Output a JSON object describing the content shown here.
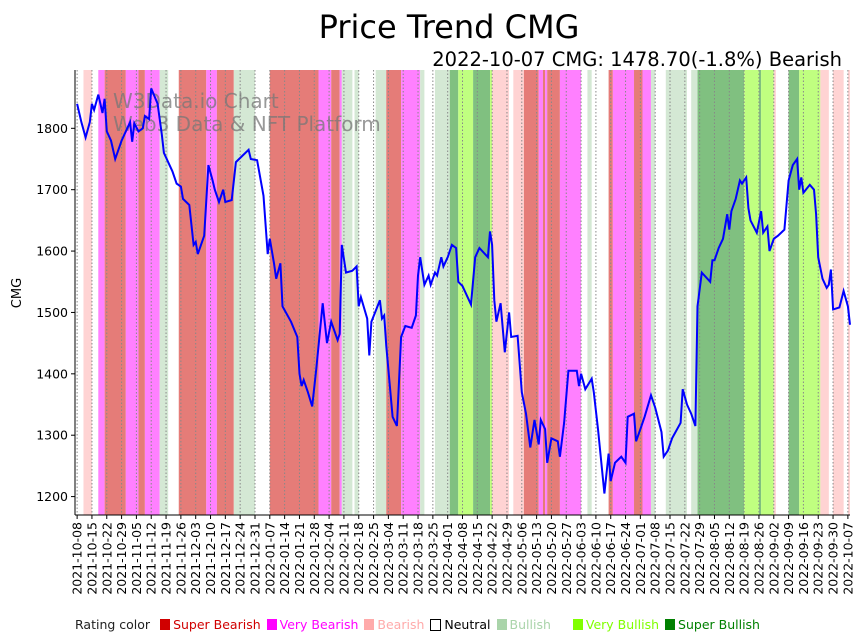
{
  "chart_data": {
    "type": "line",
    "title": "Price Trend CMG",
    "subtitle": "2022-10-07 CMG: 1478.70(-1.8%) Bearish",
    "watermark": [
      "W3Data.io Chart",
      "Web3 Data & NFT Platform"
    ],
    "ylabel": "CMG",
    "xlabel": "",
    "ylim": [
      1170,
      1895
    ],
    "yticks": [
      1200,
      1300,
      1400,
      1500,
      1600,
      1700,
      1800
    ],
    "x_unit": "days since 2021-10-08",
    "xlim": [
      -1,
      365
    ],
    "xtick_step_days": 7,
    "xtick_labels": [
      "2021-10-08",
      "2021-10-15",
      "2021-10-22",
      "2021-10-29",
      "2021-11-05",
      "2021-11-12",
      "2021-11-19",
      "2021-11-26",
      "2021-12-03",
      "2021-12-10",
      "2021-12-17",
      "2021-12-24",
      "2021-12-31",
      "2022-01-07",
      "2022-01-14",
      "2022-01-21",
      "2022-01-28",
      "2022-02-04",
      "2022-02-11",
      "2022-02-18",
      "2022-02-25",
      "2022-03-04",
      "2022-03-11",
      "2022-03-18",
      "2022-03-25",
      "2022-04-01",
      "2022-04-08",
      "2022-04-15",
      "2022-04-22",
      "2022-04-29",
      "2022-05-06",
      "2022-05-13",
      "2022-05-20",
      "2022-05-27",
      "2022-06-03",
      "2022-06-10",
      "2022-06-17",
      "2022-06-24",
      "2022-07-01",
      "2022-07-08",
      "2022-07-15",
      "2022-07-22",
      "2022-07-29",
      "2022-08-05",
      "2022-08-12",
      "2022-08-19",
      "2022-08-26",
      "2022-09-02",
      "2022-09-09",
      "2022-09-16",
      "2022-09-23",
      "2022-09-30",
      "2022-10-07"
    ],
    "grid": "vertical dotted at x ticks",
    "series": [
      {
        "name": "CMG price",
        "color": "#0000ff",
        "points": [
          [
            0,
            1840
          ],
          [
            2,
            1810
          ],
          [
            4,
            1785
          ],
          [
            6,
            1810
          ],
          [
            7,
            1840
          ],
          [
            8,
            1830
          ],
          [
            10,
            1855
          ],
          [
            12,
            1825
          ],
          [
            13,
            1848
          ],
          [
            14,
            1795
          ],
          [
            16,
            1780
          ],
          [
            18,
            1750
          ],
          [
            20,
            1770
          ],
          [
            21,
            1780
          ],
          [
            23,
            1795
          ],
          [
            25,
            1810
          ],
          [
            26,
            1778
          ],
          [
            27,
            1808
          ],
          [
            29,
            1795
          ],
          [
            31,
            1800
          ],
          [
            32,
            1820
          ],
          [
            34,
            1815
          ],
          [
            35,
            1865
          ],
          [
            38,
            1840
          ],
          [
            40,
            1790
          ],
          [
            41,
            1760
          ],
          [
            45,
            1730
          ],
          [
            47,
            1710
          ],
          [
            49,
            1705
          ],
          [
            50,
            1685
          ],
          [
            53,
            1675
          ],
          [
            55,
            1610
          ],
          [
            56,
            1615
          ],
          [
            57,
            1595
          ],
          [
            60,
            1625
          ],
          [
            62,
            1740
          ],
          [
            64,
            1715
          ],
          [
            65,
            1700
          ],
          [
            67,
            1680
          ],
          [
            69,
            1700
          ],
          [
            70,
            1680
          ],
          [
            73,
            1683
          ],
          [
            75,
            1745
          ],
          [
            78,
            1755
          ],
          [
            81,
            1765
          ],
          [
            82,
            1750
          ],
          [
            85,
            1748
          ],
          [
            88,
            1690
          ],
          [
            90,
            1595
          ],
          [
            91,
            1620
          ],
          [
            93,
            1580
          ],
          [
            94,
            1555
          ],
          [
            96,
            1580
          ],
          [
            97,
            1510
          ],
          [
            101,
            1485
          ],
          [
            104,
            1460
          ],
          [
            105,
            1400
          ],
          [
            106,
            1380
          ],
          [
            107,
            1390
          ],
          [
            109,
            1370
          ],
          [
            111,
            1347
          ],
          [
            113,
            1410
          ],
          [
            116,
            1515
          ],
          [
            118,
            1450
          ],
          [
            120,
            1485
          ],
          [
            123,
            1455
          ],
          [
            124,
            1465
          ],
          [
            125,
            1610
          ],
          [
            127,
            1565
          ],
          [
            130,
            1568
          ],
          [
            132,
            1575
          ],
          [
            133,
            1510
          ],
          [
            134,
            1525
          ],
          [
            137,
            1490
          ],
          [
            138,
            1430
          ],
          [
            139,
            1485
          ],
          [
            143,
            1520
          ],
          [
            144,
            1490
          ],
          [
            145,
            1495
          ],
          [
            146,
            1445
          ],
          [
            149,
            1330
          ],
          [
            151,
            1315
          ],
          [
            153,
            1460
          ],
          [
            155,
            1478
          ],
          [
            158,
            1475
          ],
          [
            160,
            1495
          ],
          [
            161,
            1560
          ],
          [
            162,
            1590
          ],
          [
            164,
            1545
          ],
          [
            166,
            1560
          ],
          [
            167,
            1545
          ],
          [
            169,
            1565
          ],
          [
            170,
            1560
          ],
          [
            172,
            1590
          ],
          [
            173,
            1575
          ],
          [
            175,
            1590
          ],
          [
            177,
            1610
          ],
          [
            179,
            1605
          ],
          [
            180,
            1550
          ],
          [
            182,
            1543
          ],
          [
            186,
            1513
          ],
          [
            188,
            1590
          ],
          [
            190,
            1605
          ],
          [
            194,
            1590
          ],
          [
            195,
            1632
          ],
          [
            196,
            1610
          ],
          [
            197,
            1520
          ],
          [
            198,
            1485
          ],
          [
            200,
            1515
          ],
          [
            202,
            1435
          ],
          [
            204,
            1500
          ],
          [
            205,
            1460
          ],
          [
            208,
            1462
          ],
          [
            210,
            1370
          ],
          [
            212,
            1335
          ],
          [
            214,
            1280
          ],
          [
            216,
            1325
          ],
          [
            218,
            1285
          ],
          [
            219,
            1325
          ],
          [
            221,
            1310
          ],
          [
            222,
            1255
          ],
          [
            224,
            1295
          ],
          [
            227,
            1290
          ],
          [
            228,
            1265
          ],
          [
            230,
            1320
          ],
          [
            232,
            1405
          ],
          [
            236,
            1405
          ],
          [
            237,
            1380
          ],
          [
            238,
            1400
          ],
          [
            240,
            1375
          ],
          [
            243,
            1392
          ],
          [
            244,
            1370
          ],
          [
            246,
            1310
          ],
          [
            249,
            1205
          ],
          [
            251,
            1270
          ],
          [
            252,
            1225
          ],
          [
            254,
            1255
          ],
          [
            257,
            1265
          ],
          [
            259,
            1255
          ],
          [
            260,
            1330
          ],
          [
            263,
            1335
          ],
          [
            264,
            1290
          ],
          [
            266,
            1310
          ],
          [
            268,
            1330
          ],
          [
            271,
            1365
          ],
          [
            273,
            1345
          ],
          [
            276,
            1305
          ],
          [
            277,
            1265
          ],
          [
            279,
            1275
          ],
          [
            281,
            1295
          ],
          [
            285,
            1320
          ],
          [
            286,
            1375
          ],
          [
            288,
            1350
          ],
          [
            290,
            1335
          ],
          [
            292,
            1315
          ],
          [
            293,
            1510
          ],
          [
            295,
            1565
          ],
          [
            299,
            1550
          ],
          [
            300,
            1585
          ],
          [
            301,
            1585
          ],
          [
            303,
            1605
          ],
          [
            305,
            1620
          ],
          [
            307,
            1660
          ],
          [
            308,
            1635
          ],
          [
            309,
            1665
          ],
          [
            311,
            1685
          ],
          [
            313,
            1715
          ],
          [
            314,
            1710
          ],
          [
            316,
            1720
          ],
          [
            317,
            1670
          ],
          [
            318,
            1650
          ],
          [
            321,
            1630
          ],
          [
            323,
            1665
          ],
          [
            324,
            1630
          ],
          [
            326,
            1640
          ],
          [
            327,
            1600
          ],
          [
            329,
            1620
          ],
          [
            331,
            1625
          ],
          [
            334,
            1635
          ],
          [
            336,
            1715
          ],
          [
            338,
            1740
          ],
          [
            340,
            1750
          ],
          [
            341,
            1700
          ],
          [
            342,
            1720
          ],
          [
            343,
            1695
          ],
          [
            346,
            1708
          ],
          [
            348,
            1700
          ],
          [
            349,
            1660
          ],
          [
            350,
            1590
          ],
          [
            352,
            1555
          ],
          [
            354,
            1540
          ],
          [
            355,
            1545
          ],
          [
            356,
            1570
          ],
          [
            357,
            1505
          ],
          [
            360,
            1508
          ],
          [
            362,
            1535
          ],
          [
            364,
            1510
          ],
          [
            365,
            1480
          ]
        ]
      }
    ],
    "rating_bands": [
      [
        3,
        7,
        "bearish"
      ],
      [
        10,
        13,
        "very_bearish"
      ],
      [
        13,
        23,
        "super_bearish"
      ],
      [
        23,
        29,
        "very_bearish"
      ],
      [
        29,
        32,
        "super_bearish"
      ],
      [
        32,
        39,
        "very_bearish"
      ],
      [
        39,
        43,
        "bullish"
      ],
      [
        48,
        61,
        "super_bearish"
      ],
      [
        61,
        66,
        "very_bearish"
      ],
      [
        66,
        74,
        "super_bearish"
      ],
      [
        74,
        84,
        "bullish"
      ],
      [
        91,
        114,
        "super_bearish"
      ],
      [
        114,
        120,
        "very_bearish"
      ],
      [
        120,
        124,
        "super_bearish"
      ],
      [
        124,
        125,
        "very_bearish"
      ],
      [
        125,
        130,
        "bullish"
      ],
      [
        131,
        133,
        "bullish"
      ],
      [
        141,
        146,
        "bullish"
      ],
      [
        146,
        153,
        "super_bearish"
      ],
      [
        153,
        162,
        "very_bearish"
      ],
      [
        162,
        164,
        "bullish"
      ],
      [
        169,
        176,
        "bullish"
      ],
      [
        176,
        180,
        "super_bullish"
      ],
      [
        180,
        187,
        "very_bullish"
      ],
      [
        187,
        195,
        "super_bullish"
      ],
      [
        195,
        196,
        "very_bullish"
      ],
      [
        196,
        204,
        "bearish"
      ],
      [
        206,
        211,
        "bearish"
      ],
      [
        211,
        218,
        "super_bearish"
      ],
      [
        218,
        220,
        "very_bearish"
      ],
      [
        220,
        221,
        "super_bearish"
      ],
      [
        221,
        222,
        "very_bearish"
      ],
      [
        222,
        228,
        "super_bearish"
      ],
      [
        228,
        238,
        "very_bearish"
      ],
      [
        241,
        243,
        "bullish"
      ],
      [
        251,
        253,
        "super_bearish"
      ],
      [
        253,
        263,
        "very_bearish"
      ],
      [
        263,
        267,
        "super_bearish"
      ],
      [
        267,
        271,
        "very_bearish"
      ],
      [
        271,
        273,
        "bullish"
      ],
      [
        278,
        288,
        "bullish"
      ],
      [
        290,
        293,
        "bullish"
      ],
      [
        293,
        315,
        "super_bullish"
      ],
      [
        315,
        322,
        "very_bullish"
      ],
      [
        322,
        323,
        "super_bullish"
      ],
      [
        323,
        329,
        "very_bullish"
      ],
      [
        329,
        330,
        "bearish"
      ],
      [
        336,
        341,
        "super_bullish"
      ],
      [
        341,
        351,
        "very_bullish"
      ],
      [
        351,
        355,
        "bearish"
      ],
      [
        357,
        362,
        "bearish"
      ],
      [
        364,
        365,
        "bearish"
      ]
    ],
    "band_colors": {
      "super_bearish": "#e57c78",
      "very_bearish": "#ff80ff",
      "bearish": "#ffd3d3",
      "neutral": "#ffffff",
      "bullish": "#d4e8d4",
      "very_bullish": "#c0ff80",
      "super_bullish": "#80c080"
    },
    "legend": {
      "title": "Rating color",
      "placement": "bottom",
      "entries": [
        {
          "key": "super_bearish",
          "label": "Super Bearish",
          "color": "#d00000"
        },
        {
          "key": "very_bearish",
          "label": "Very Bearish",
          "color": "#ff00ff"
        },
        {
          "key": "bearish",
          "label": "Bearish",
          "color": "#ffaaaa"
        },
        {
          "key": "neutral",
          "label": "Neutral",
          "color": "#ffffff"
        },
        {
          "key": "bullish",
          "label": "Bullish",
          "color": "#aad4aa"
        },
        {
          "key": "very_bullish",
          "label": "Very Bullish",
          "color": "#80ff00"
        },
        {
          "key": "super_bullish",
          "label": "Super Bullish",
          "color": "#008000"
        }
      ]
    }
  }
}
